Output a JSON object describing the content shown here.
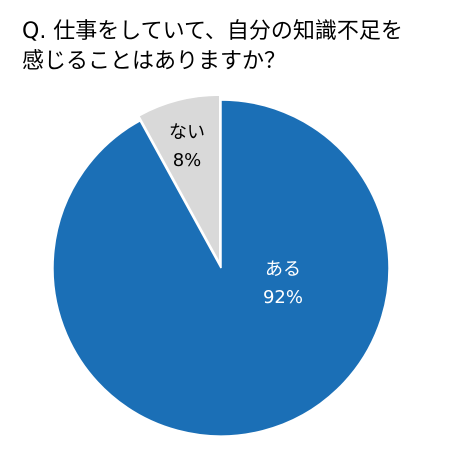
{
  "chart_data": {
    "type": "pie",
    "title": [
      "Q. 仕事をしていて、自分の知識不足を",
      "感じることはありますか？"
    ],
    "categories": [
      "ある",
      "ない"
    ],
    "values": [
      92,
      8
    ],
    "value_labels": [
      "92%",
      "8%"
    ],
    "colors": [
      "#1b6fb6",
      "#d9d9d9"
    ],
    "label_colors": [
      "#ffffff",
      "#000000"
    ]
  }
}
